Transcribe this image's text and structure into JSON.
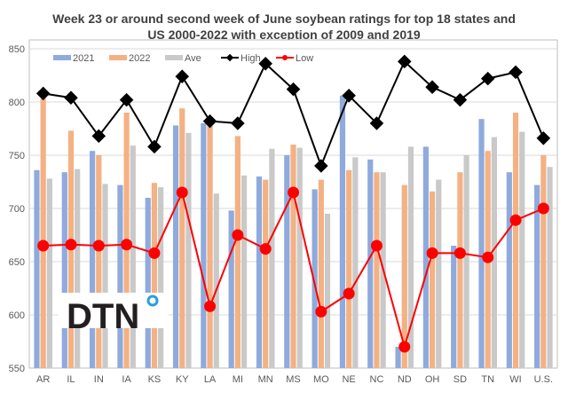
{
  "chart_data": {
    "type": "bar",
    "title_line1": "Week 23 or around second week of June soybean ratings for top 18 states and",
    "title_line2": "US 2000-2022 with exception of 2009 and 2019",
    "categories": [
      "AR",
      "IL",
      "IN",
      "IA",
      "KS",
      "KY",
      "LA",
      "MI",
      "MN",
      "MS",
      "MO",
      "NE",
      "NC",
      "ND",
      "OH",
      "SD",
      "TN",
      "WI",
      "U.S."
    ],
    "series": [
      {
        "name": "2021",
        "kind": "bar",
        "color": "#8FAADC",
        "values": [
          736,
          734,
          754,
          722,
          710,
          778,
          780,
          698,
          730,
          750,
          718,
          806,
          746,
          570,
          758,
          665,
          784,
          734,
          722
        ]
      },
      {
        "name": "2022",
        "kind": "bar",
        "color": "#F4B183",
        "values": [
          808,
          773,
          750,
          790,
          724,
          794,
          780,
          768,
          727,
          760,
          727,
          736,
          734,
          722,
          716,
          734,
          754,
          790,
          750
        ]
      },
      {
        "name": "Ave",
        "kind": "bar",
        "color": "#C9C9C9",
        "values": [
          728,
          737,
          723,
          759,
          720,
          771,
          714,
          731,
          756,
          757,
          695,
          748,
          734,
          758,
          727,
          750,
          767,
          772,
          739
        ]
      },
      {
        "name": "High",
        "kind": "line",
        "color": "#000000",
        "values": [
          808,
          804,
          768,
          802,
          758,
          824,
          782,
          780,
          836,
          812,
          740,
          806,
          780,
          838,
          814,
          802,
          822,
          828,
          766
        ]
      },
      {
        "name": "Low",
        "kind": "line",
        "color": "#FF0000",
        "values": [
          665,
          666,
          665,
          666,
          658,
          715,
          608,
          675,
          662,
          715,
          603,
          620,
          665,
          570,
          658,
          658,
          654,
          689,
          700
        ]
      }
    ],
    "ylim": [
      550,
      850
    ],
    "yticks": [
      "550",
      "600",
      "650",
      "700",
      "750",
      "800",
      "850"
    ],
    "grid": true,
    "legend_position": "top"
  },
  "logo": "DTN"
}
